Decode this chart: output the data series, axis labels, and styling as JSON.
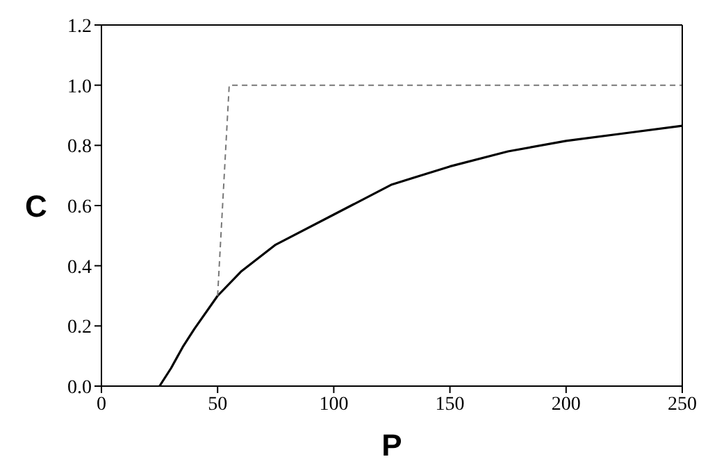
{
  "chart_data": {
    "type": "line",
    "xlabel": "P",
    "ylabel": "C",
    "xlim": [
      0,
      250
    ],
    "xticks": [
      0,
      50,
      100,
      150,
      200,
      250
    ],
    "ylim": [
      0,
      1.2
    ],
    "yticks": [
      {
        "value": 0,
        "label": "0.0"
      },
      {
        "value": 0.2,
        "label": "0.2"
      },
      {
        "value": 0.4,
        "label": "0.4"
      },
      {
        "value": 0.6,
        "label": "0.6"
      },
      {
        "value": 0.8,
        "label": "0.8"
      },
      {
        "value": 1,
        "label": "1.0"
      },
      {
        "value": 1.2,
        "label": "1.2"
      }
    ],
    "marker": "none",
    "series": [
      {
        "color": "#000000",
        "line_style": "solid",
        "x": [
          25,
          30,
          35,
          40,
          50,
          60,
          75,
          100,
          125,
          150,
          175,
          200,
          225,
          250
        ],
        "values": [
          0,
          0.06,
          0.13,
          0.19,
          0.3,
          0.38,
          0.47,
          0.57,
          0.67,
          0.73,
          0.78,
          0.815,
          0.84,
          0.865
        ]
      },
      {
        "color": "#777777",
        "line_style": "dashed",
        "x": [
          50,
          55,
          250
        ],
        "values": [
          0.3,
          1,
          1
        ]
      }
    ]
  }
}
